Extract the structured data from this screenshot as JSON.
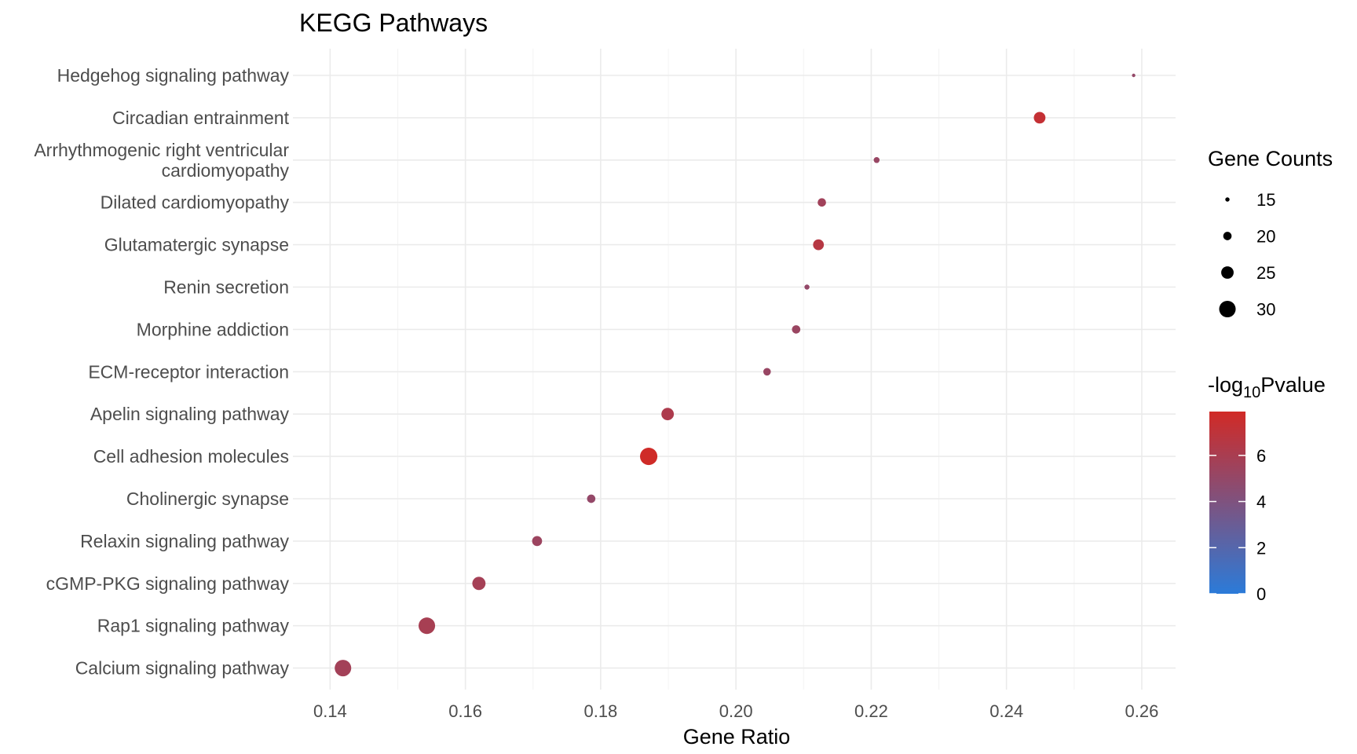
{
  "chart_data": {
    "type": "scatter",
    "title": "KEGG Pathways",
    "xlabel": "Gene Ratio",
    "ylabel": "",
    "xlim": [
      0.1345,
      0.265
    ],
    "x_ticks": [
      0.14,
      0.16,
      0.18,
      0.2,
      0.22,
      0.24,
      0.26
    ],
    "x_tick_labels": [
      "0.14",
      "0.16",
      "0.18",
      "0.20",
      "0.22",
      "0.24",
      "0.26"
    ],
    "grid": true,
    "categories": [
      "Hedgehog signaling pathway",
      "Circadian entrainment",
      "Arrhythmogenic right ventricular cardiomyopathy",
      "Dilated cardiomyopathy",
      "Glutamatergic synapse",
      "Renin secretion",
      "Morphine addiction",
      "ECM-receptor interaction",
      "Apelin signaling pathway",
      "Cell adhesion molecules",
      "Cholinergic synapse",
      "Relaxin signaling pathway",
      "cGMP-PKG signaling pathway",
      "Rap1 signaling pathway",
      "Calcium signaling pathway"
    ],
    "category_label_lines": [
      [
        "Hedgehog signaling pathway"
      ],
      [
        "Circadian entrainment"
      ],
      [
        "Arrhythmogenic right ventricular",
        "cardiomyopathy"
      ],
      [
        "Dilated cardiomyopathy"
      ],
      [
        "Glutamatergic synapse"
      ],
      [
        "Renin secretion"
      ],
      [
        "Morphine addiction"
      ],
      [
        "ECM-receptor interaction"
      ],
      [
        "Apelin signaling pathway"
      ],
      [
        "Cell adhesion molecules"
      ],
      [
        "Cholinergic synapse"
      ],
      [
        "Relaxin signaling pathway"
      ],
      [
        "cGMP-PKG signaling pathway"
      ],
      [
        "Rap1 signaling pathway"
      ],
      [
        "Calcium signaling pathway"
      ]
    ],
    "points": [
      {
        "category": "Hedgehog signaling pathway",
        "gene_ratio": 0.2588,
        "count": 14,
        "neg_log10_p": 5.0
      },
      {
        "category": "Circadian entrainment",
        "gene_ratio": 0.2449,
        "count": 24,
        "neg_log10_p": 7.3
      },
      {
        "category": "Arrhythmogenic right ventricular cardiomyopathy",
        "gene_ratio": 0.2208,
        "count": 17,
        "neg_log10_p": 5.2
      },
      {
        "category": "Dilated cardiomyopathy",
        "gene_ratio": 0.2127,
        "count": 20,
        "neg_log10_p": 5.6
      },
      {
        "category": "Glutamatergic synapse",
        "gene_ratio": 0.2122,
        "count": 23,
        "neg_log10_p": 6.6
      },
      {
        "category": "Renin secretion",
        "gene_ratio": 0.2105,
        "count": 16,
        "neg_log10_p": 5.0
      },
      {
        "category": "Morphine addiction",
        "gene_ratio": 0.2089,
        "count": 20,
        "neg_log10_p": 5.3
      },
      {
        "category": "ECM-receptor interaction",
        "gene_ratio": 0.2046,
        "count": 19,
        "neg_log10_p": 5.2
      },
      {
        "category": "Apelin signaling pathway",
        "gene_ratio": 0.1899,
        "count": 25,
        "neg_log10_p": 6.2
      },
      {
        "category": "Cell adhesion molecules",
        "gene_ratio": 0.1871,
        "count": 31,
        "neg_log10_p": 7.8
      },
      {
        "category": "Cholinergic synapse",
        "gene_ratio": 0.1786,
        "count": 20,
        "neg_log10_p": 5.0
      },
      {
        "category": "Relaxin signaling pathway",
        "gene_ratio": 0.1706,
        "count": 22,
        "neg_log10_p": 5.4
      },
      {
        "category": "cGMP-PKG signaling pathway",
        "gene_ratio": 0.162,
        "count": 26,
        "neg_log10_p": 5.8
      },
      {
        "category": "Rap1 signaling pathway",
        "gene_ratio": 0.1543,
        "count": 30,
        "neg_log10_p": 5.9
      },
      {
        "category": "Calcium signaling pathway",
        "gene_ratio": 0.1419,
        "count": 30,
        "neg_log10_p": 5.7
      }
    ],
    "size_legend": {
      "title": "Gene Counts",
      "values": [
        15,
        20,
        25,
        30
      ],
      "labels": [
        "15",
        "20",
        "25",
        "30"
      ]
    },
    "color_legend": {
      "title_prefix": "-log",
      "title_subscript": "10",
      "title_suffix": "Pvalue",
      "range": [
        0,
        7.9
      ],
      "ticks": [
        0,
        2,
        4,
        6
      ],
      "tick_labels": [
        "0",
        "2",
        "4",
        "6"
      ],
      "low_color": "#2b7bd9",
      "high_color": "#d12a26"
    },
    "legend_position": "right"
  }
}
